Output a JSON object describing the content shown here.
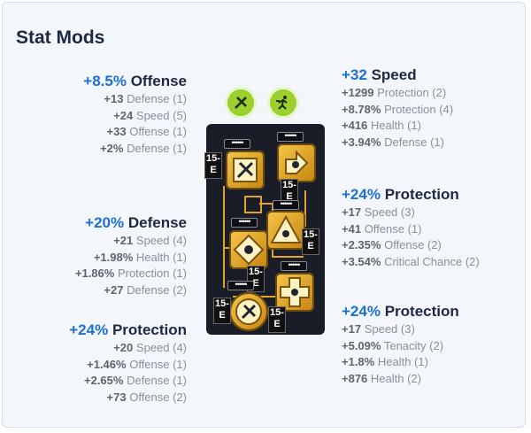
{
  "title": "Stat Mods",
  "mods": {
    "top_left": {
      "primary_value": "+8.5%",
      "primary_stat": "Offense",
      "secondary": [
        {
          "value": "+13",
          "stat": "Defense (1)"
        },
        {
          "value": "+24",
          "stat": "Speed (5)"
        },
        {
          "value": "+33",
          "stat": "Offense (1)"
        },
        {
          "value": "+2%",
          "stat": "Defense (1)"
        }
      ]
    },
    "mid_left": {
      "primary_value": "+20%",
      "primary_stat": "Defense",
      "secondary": [
        {
          "value": "+21",
          "stat": "Speed (4)"
        },
        {
          "value": "+1.98%",
          "stat": "Health (1)"
        },
        {
          "value": "+1.86%",
          "stat": "Protection (1)"
        },
        {
          "value": "+27",
          "stat": "Defense (2)"
        }
      ]
    },
    "bottom_left": {
      "primary_value": "+24%",
      "primary_stat": "Protection",
      "secondary": [
        {
          "value": "+20",
          "stat": "Speed (4)"
        },
        {
          "value": "+1.46%",
          "stat": "Offense (1)"
        },
        {
          "value": "+2.65%",
          "stat": "Defense (1)"
        },
        {
          "value": "+73",
          "stat": "Offense (2)"
        }
      ]
    },
    "top_right": {
      "primary_value": "+32",
      "primary_stat": "Speed",
      "secondary": [
        {
          "value": "+1299",
          "stat": "Protection (2)"
        },
        {
          "value": "+8.78%",
          "stat": "Protection (4)"
        },
        {
          "value": "+416",
          "stat": "Health (1)"
        },
        {
          "value": "+3.94%",
          "stat": "Defense (1)"
        }
      ]
    },
    "mid_right": {
      "primary_value": "+24%",
      "primary_stat": "Protection",
      "secondary": [
        {
          "value": "+17",
          "stat": "Speed (3)"
        },
        {
          "value": "+41",
          "stat": "Offense (1)"
        },
        {
          "value": "+2.35%",
          "stat": "Offense (2)"
        },
        {
          "value": "+3.54%",
          "stat": "Critical Chance (2)"
        }
      ]
    },
    "bottom_right": {
      "primary_value": "+24%",
      "primary_stat": "Protection",
      "secondary": [
        {
          "value": "+17",
          "stat": "Speed (3)"
        },
        {
          "value": "+5.09%",
          "stat": "Tenacity (2)"
        },
        {
          "value": "+1.8%",
          "stat": "Health (1)"
        },
        {
          "value": "+876",
          "stat": "Health (2)"
        }
      ]
    }
  },
  "board": {
    "badge": "15-\nE",
    "dots": "••••••",
    "set_icons": [
      "crit-set-icon",
      "speed-set-icon"
    ]
  },
  "colors": {
    "accent": "#1f6fd1",
    "set_green": "#9ccf2f",
    "mod_gold": "#f6c84a"
  }
}
